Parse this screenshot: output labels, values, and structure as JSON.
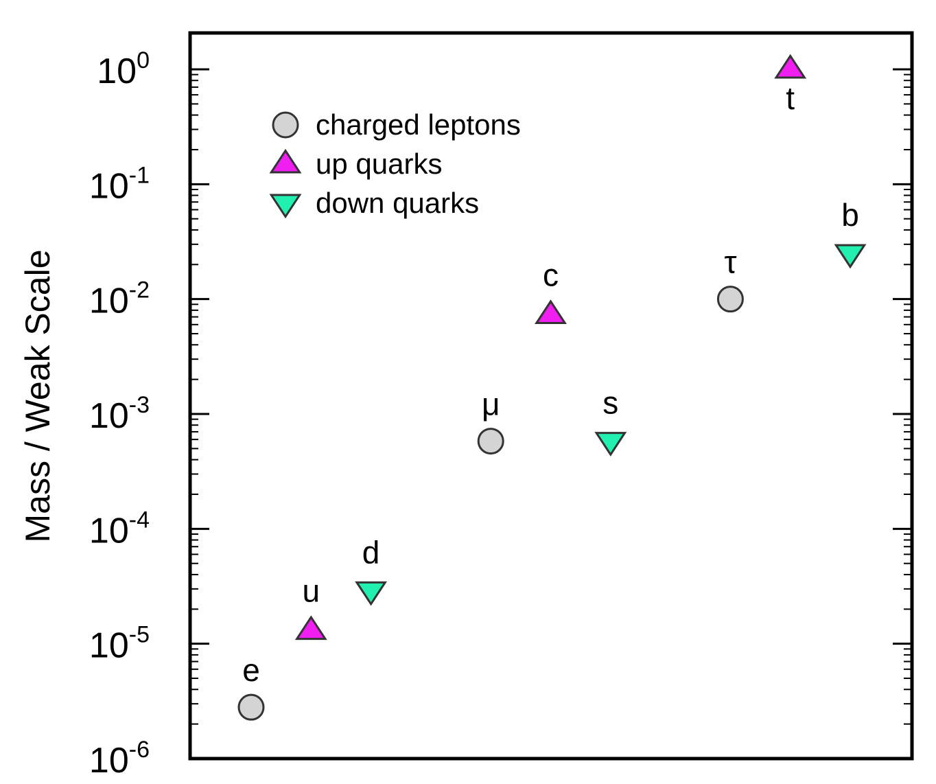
{
  "chart_data": {
    "type": "scatter",
    "title": "",
    "xlabel": "",
    "ylabel": "Mass / Weak Scale",
    "yscale": "log",
    "ylim": [
      1e-06,
      1
    ],
    "xlim": [
      0,
      12
    ],
    "grid": false,
    "legend_position": "top-left",
    "y_tick_labels": [
      {
        "base": "10",
        "exp": "0",
        "value": 1
      },
      {
        "base": "10",
        "exp": "-1",
        "value": 0.1
      },
      {
        "base": "10",
        "exp": "-2",
        "value": 0.01
      },
      {
        "base": "10",
        "exp": "-3",
        "value": 0.001
      },
      {
        "base": "10",
        "exp": "-4",
        "value": 0.0001
      },
      {
        "base": "10",
        "exp": "-5",
        "value": 1e-05
      },
      {
        "base": "10",
        "exp": "-6",
        "value": 1e-06
      }
    ],
    "series": [
      {
        "name": "charged leptons",
        "marker": "circle",
        "color": "#d4d4d4",
        "points": [
          {
            "label": "e",
            "x": 1,
            "y": 2.8e-06
          },
          {
            "label": "μ",
            "x": 5,
            "y": 0.00058
          },
          {
            "label": "τ",
            "x": 9,
            "y": 0.01
          }
        ]
      },
      {
        "name": "up quarks",
        "marker": "triangle-up",
        "color": "#f01ef0",
        "points": [
          {
            "label": "u",
            "x": 2,
            "y": 1.3e-05
          },
          {
            "label": "c",
            "x": 6,
            "y": 0.0073
          },
          {
            "label": "t",
            "x": 10,
            "y": 1.0
          }
        ]
      },
      {
        "name": "down quarks",
        "marker": "triangle-down",
        "color": "#22f0b0",
        "points": [
          {
            "label": "d",
            "x": 3,
            "y": 2.9e-05
          },
          {
            "label": "s",
            "x": 7,
            "y": 0.00058
          },
          {
            "label": "b",
            "x": 11,
            "y": 0.025
          }
        ]
      }
    ],
    "stroke_color": "#333333"
  }
}
